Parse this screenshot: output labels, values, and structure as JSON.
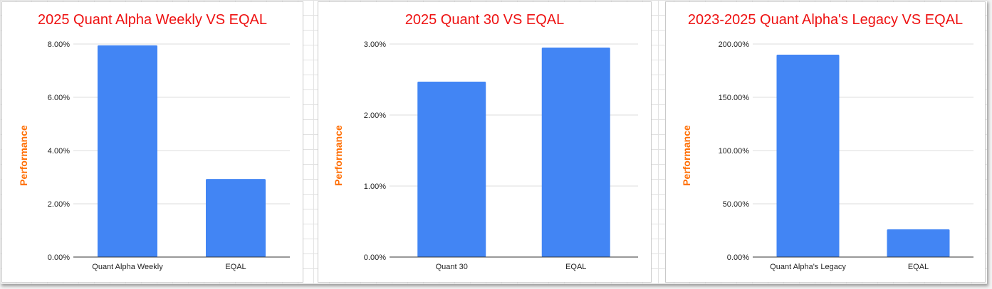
{
  "chart_data": [
    {
      "type": "bar",
      "title": "2025 Quant Alpha Weekly VS EQAL",
      "ylabel": "Performance",
      "xlabel": "",
      "categories": [
        "Quant Alpha Weekly",
        "EQAL"
      ],
      "values": [
        7.95,
        2.93
      ],
      "ylim": [
        0,
        8
      ],
      "yticks": [
        0,
        2,
        4,
        6,
        8
      ],
      "ytick_labels": [
        "0.00%",
        "2.00%",
        "4.00%",
        "6.00%",
        "8.00%"
      ],
      "grid": true,
      "bar_color": "#4285f4"
    },
    {
      "type": "bar",
      "title": "2025 Quant 30 VS EQAL",
      "ylabel": "Performance",
      "xlabel": "",
      "categories": [
        "Quant 30",
        "EQAL"
      ],
      "values": [
        2.47,
        2.95
      ],
      "ylim": [
        0,
        3
      ],
      "yticks": [
        0,
        1,
        2,
        3
      ],
      "ytick_labels": [
        "0.00%",
        "1.00%",
        "2.00%",
        "3.00%"
      ],
      "grid": true,
      "bar_color": "#4285f4"
    },
    {
      "type": "bar",
      "title": "2023-2025 Quant Alpha's Legacy VS EQAL",
      "ylabel": "Performance",
      "xlabel": "",
      "categories": [
        "Quant Alpha's Legacy",
        "EQAL"
      ],
      "values": [
        190,
        26
      ],
      "ylim": [
        0,
        200
      ],
      "yticks": [
        0,
        50,
        100,
        150,
        200
      ],
      "ytick_labels": [
        "0.00%",
        "50.00%",
        "100.00%",
        "150.00%",
        "200.00%"
      ],
      "grid": true,
      "bar_color": "#4285f4"
    }
  ],
  "colors": {
    "title": "#ee1111",
    "ylabel": "#ff6d01",
    "bar": "#4285f4",
    "grid": "#dddddd"
  }
}
